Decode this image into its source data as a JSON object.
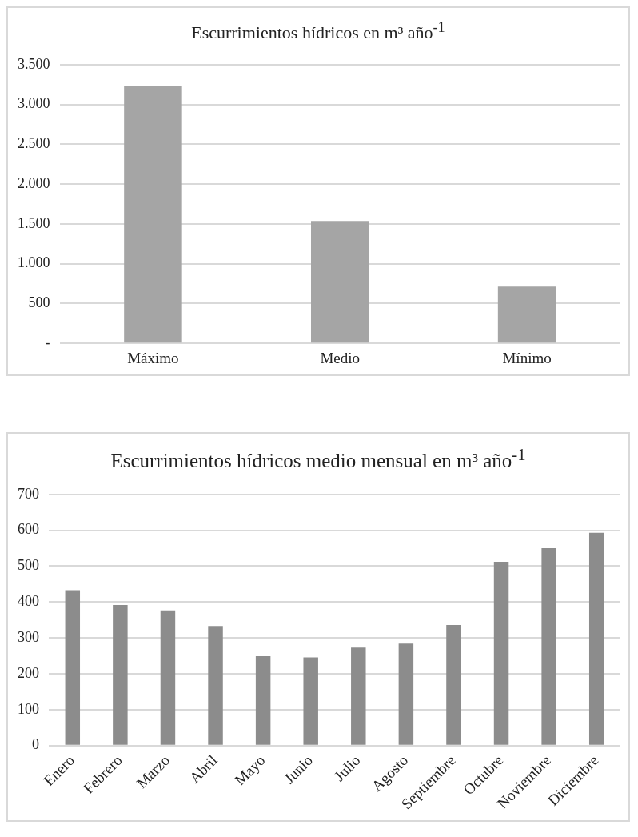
{
  "chart_data": [
    {
      "type": "bar",
      "title": "Escurrimientos hídricos en m³ año$^{-1}$",
      "categories": [
        "Máximo",
        "Medio",
        "Mínimo"
      ],
      "values": [
        3235,
        1537,
        713
      ],
      "color": "#a5a5a5",
      "ylim": [
        0,
        3500
      ],
      "yticks": [
        {
          "value": 0,
          "label": "-"
        },
        {
          "value": 500,
          "label": "500"
        },
        {
          "value": 1000,
          "label": "1.000"
        },
        {
          "value": 1500,
          "label": "1.500"
        },
        {
          "value": 2000,
          "label": "2.000"
        },
        {
          "value": 2500,
          "label": "2.500"
        },
        {
          "value": 3000,
          "label": "3.000"
        },
        {
          "value": 3500,
          "label": "3.500"
        }
      ],
      "grid": "y",
      "legend": false
    },
    {
      "type": "bar",
      "title": "Escurrimientos hídricos medio mensual en m³ año$^{-1}$",
      "categories": [
        "Enero",
        "Febrero",
        "Marzo",
        "Abril",
        "Mayo",
        "Junio",
        "Julio",
        "Agosto",
        "Septiembre",
        "Octubre",
        "Noviembre",
        "Diciembre"
      ],
      "values": [
        433,
        392,
        377,
        333,
        249,
        246,
        273,
        284,
        336,
        512,
        550,
        593
      ],
      "color": "#8c8c8c",
      "ylim": [
        0,
        700
      ],
      "yticks": [
        0,
        100,
        200,
        300,
        400,
        500,
        600,
        700
      ],
      "grid": "y",
      "legend": false
    }
  ]
}
